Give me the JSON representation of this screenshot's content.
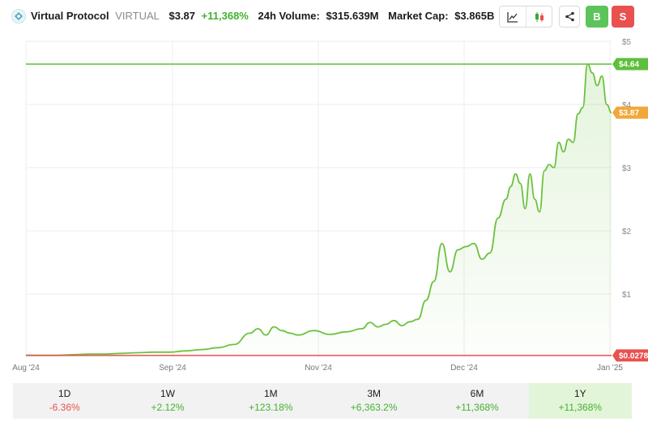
{
  "header": {
    "name": "Virtual Protocol",
    "symbol": "VIRTUAL",
    "price": "$3.87",
    "change": "+11,368%",
    "volume_label": "24h Volume:",
    "volume_value": "$315.639M",
    "mcap_label": "Market Cap:",
    "mcap_value": "$3.865B",
    "logo_icon": "virtual-logo-icon",
    "buy_label": "B",
    "sell_label": "S"
  },
  "colors": {
    "line": "#6cc23f",
    "high": "#5fbf3c",
    "current": "#f0a839",
    "low": "#e8514f",
    "positive": "#43b130",
    "negative": "#e8514f"
  },
  "chart_data": {
    "type": "area",
    "x_ticks": [
      "Aug '24",
      "Sep '24",
      "Nov '24",
      "Dec '24",
      "Jan '25"
    ],
    "y_ticks": [
      "$5",
      "$4",
      "$3",
      "$2",
      "$1"
    ],
    "ylim": [
      0,
      5
    ],
    "y_tick_values": [
      5,
      4,
      3,
      2,
      1
    ],
    "grid": true,
    "high_label": "$4.64",
    "high_value": 4.64,
    "current_label": "$3.87",
    "current_value": 3.87,
    "low_label": "$0.0278",
    "low_value": 0.0278,
    "x": [
      0,
      10,
      20,
      30,
      40,
      50,
      60,
      70,
      80,
      90,
      100,
      110,
      120,
      130,
      140,
      145,
      150,
      155,
      160,
      165,
      170,
      180,
      190,
      200,
      210,
      215,
      220,
      225,
      230,
      235,
      240,
      245,
      250,
      255,
      260,
      265,
      270,
      275,
      280,
      285,
      290,
      295,
      300,
      303,
      306,
      309,
      312,
      315,
      318,
      321,
      324,
      327,
      330,
      333,
      336,
      339,
      342,
      345,
      348,
      351,
      354,
      357,
      360,
      363,
      366
    ],
    "values": [
      0.03,
      0.03,
      0.03,
      0.04,
      0.05,
      0.05,
      0.06,
      0.07,
      0.08,
      0.08,
      0.1,
      0.12,
      0.15,
      0.2,
      0.38,
      0.45,
      0.35,
      0.48,
      0.42,
      0.38,
      0.35,
      0.42,
      0.36,
      0.4,
      0.45,
      0.55,
      0.48,
      0.52,
      0.58,
      0.5,
      0.56,
      0.6,
      0.9,
      1.2,
      1.8,
      1.35,
      1.7,
      1.75,
      1.8,
      1.55,
      1.65,
      2.2,
      2.5,
      2.7,
      2.9,
      2.75,
      2.35,
      2.9,
      2.5,
      2.3,
      2.95,
      3.05,
      3.0,
      3.4,
      3.25,
      3.45,
      3.4,
      3.85,
      3.95,
      4.64,
      4.5,
      4.3,
      4.45,
      4.0,
      3.87
    ],
    "xlim": [
      0,
      366
    ]
  },
  "performance": [
    {
      "label": "1D",
      "value": "-6.36%",
      "sign": "neg"
    },
    {
      "label": "1W",
      "value": "+2.12%",
      "sign": "pos"
    },
    {
      "label": "1M",
      "value": "+123.18%",
      "sign": "pos"
    },
    {
      "label": "3M",
      "value": "+6,363.2%",
      "sign": "pos"
    },
    {
      "label": "6M",
      "value": "+11,368%",
      "sign": "pos"
    },
    {
      "label": "1Y",
      "value": "+11,368%",
      "sign": "pos",
      "active": true
    }
  ]
}
